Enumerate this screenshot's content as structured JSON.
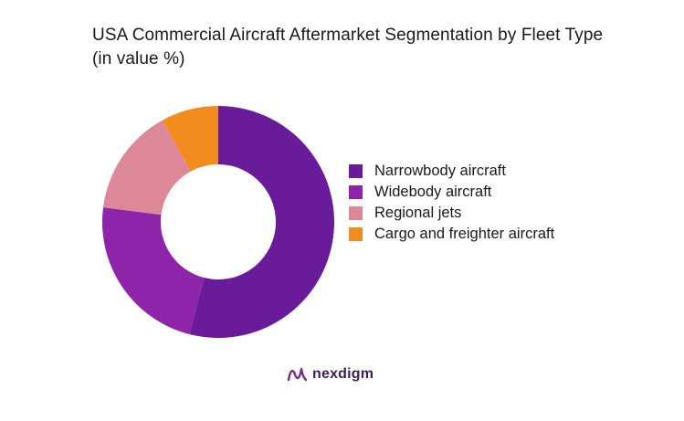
{
  "title": "USA Commercial Aircraft Aftermarket Segmentation by Fleet Type (in value %)",
  "chart_data": {
    "type": "pie",
    "title": "USA Commercial Aircraft Aftermarket Segmentation by Fleet Type (in value %)",
    "categories": [
      "Narrowbody aircraft",
      "Widebody aircraft",
      "Regional jets",
      "Cargo and freighter aircraft"
    ],
    "values": [
      54,
      23,
      15,
      8
    ],
    "colors": [
      "#6a1b9a",
      "#8e24aa",
      "#dd8899",
      "#f28c1e"
    ],
    "donut": true,
    "legend_position": "right"
  },
  "brand": {
    "name": "nexdigm",
    "logo_icon": "nexdigm-logo-icon",
    "logo_color": "#7b2d8e"
  }
}
